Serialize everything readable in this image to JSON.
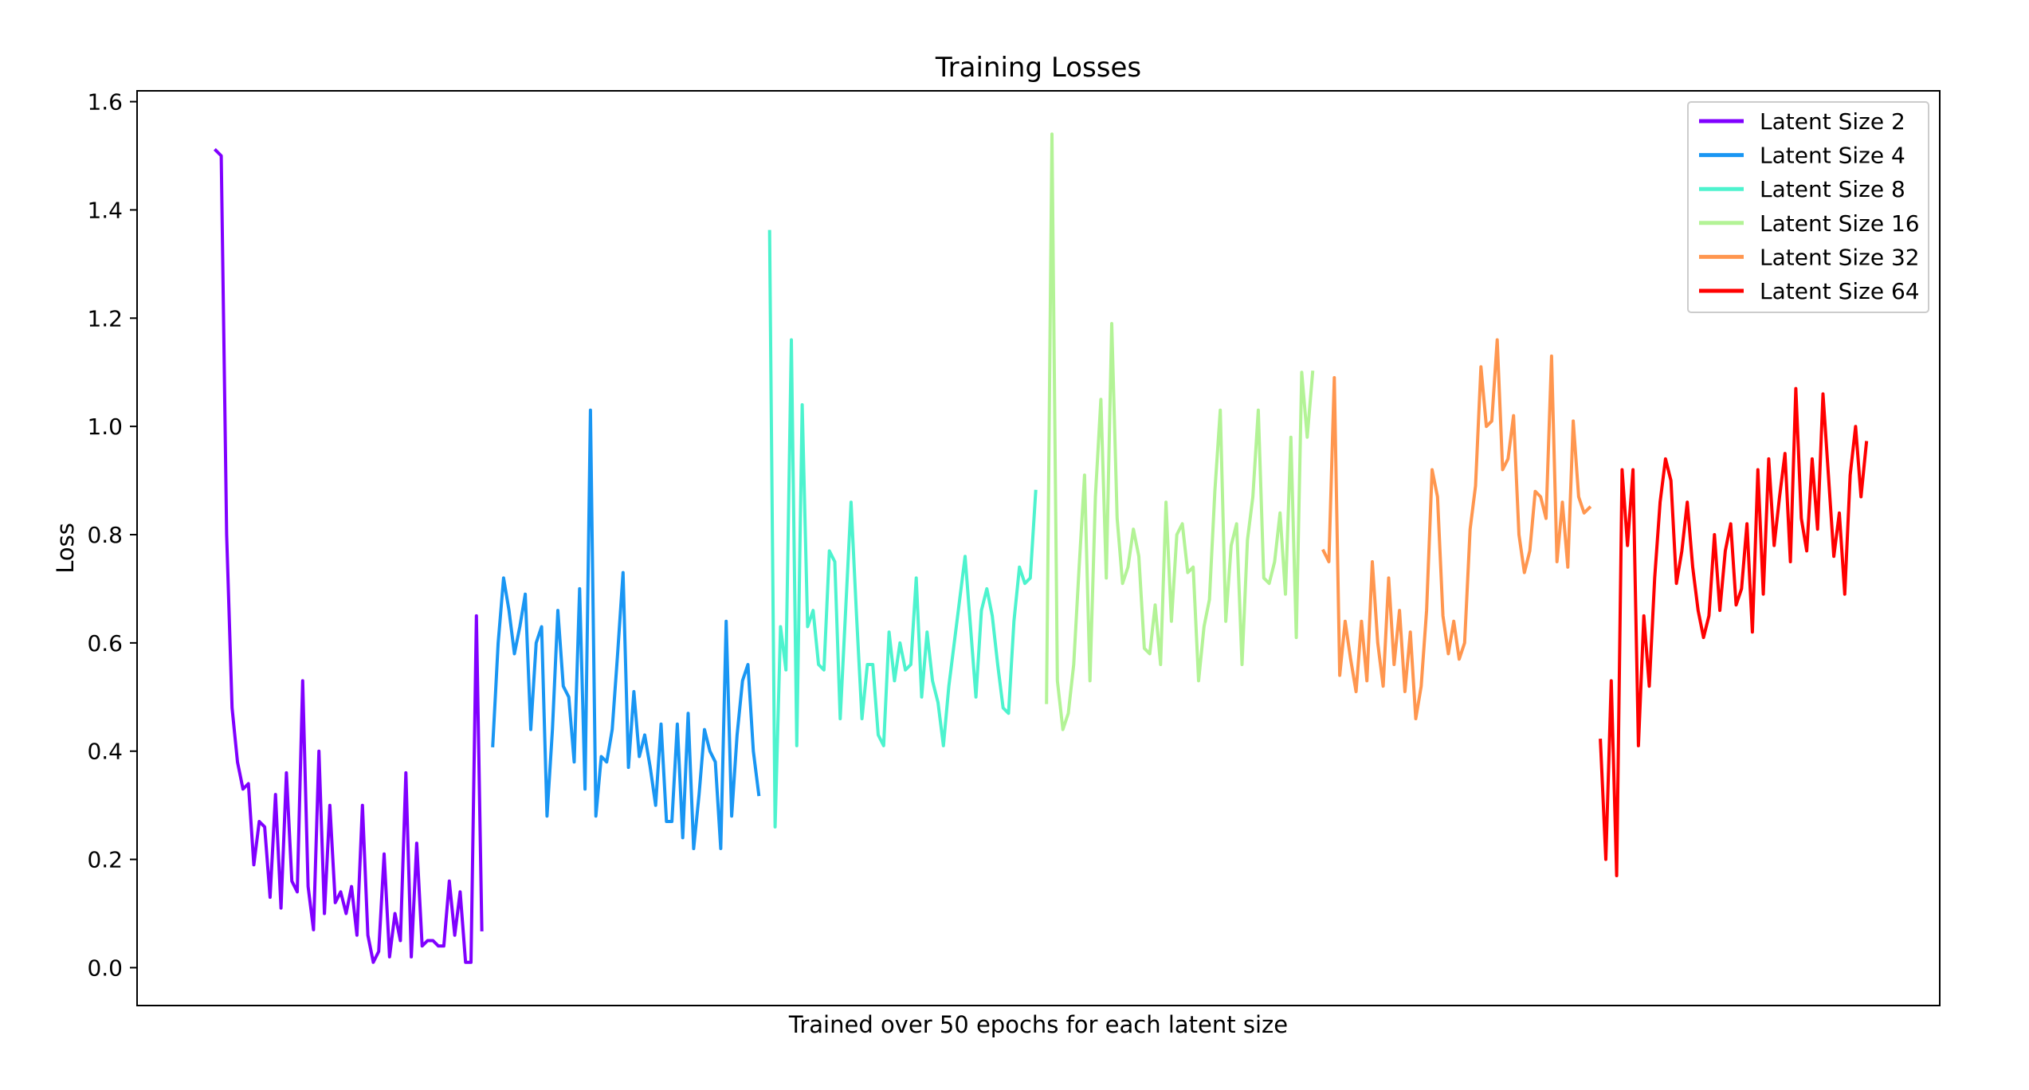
{
  "chart_data": {
    "type": "line",
    "title": "Training Losses",
    "xlabel": "Trained over 50 epochs for each latent size",
    "ylabel": "Loss",
    "ylim": [
      -0.07,
      1.62
    ],
    "yticks": [
      "0.0",
      "0.2",
      "0.4",
      "0.6",
      "0.8",
      "1.0",
      "1.2",
      "1.4",
      "1.6"
    ],
    "ytick_values": [
      0.0,
      0.2,
      0.4,
      0.6,
      0.8,
      1.0,
      1.2,
      1.4,
      1.6
    ],
    "xlim": [
      -0.5,
      331.5
    ],
    "xticks": [],
    "grid": false,
    "legend_position": "top-right",
    "series": [
      {
        "name": "Latent Size 2",
        "color": "#8000ff",
        "x_start": 14,
        "values": [
          1.51,
          1.5,
          0.8,
          0.48,
          0.38,
          0.33,
          0.34,
          0.19,
          0.27,
          0.26,
          0.13,
          0.32,
          0.11,
          0.36,
          0.16,
          0.14,
          0.53,
          0.15,
          0.07,
          0.4,
          0.1,
          0.3,
          0.12,
          0.14,
          0.1,
          0.15,
          0.06,
          0.3,
          0.06,
          0.01,
          0.03,
          0.21,
          0.02,
          0.1,
          0.05,
          0.36,
          0.02,
          0.23,
          0.04,
          0.05,
          0.05,
          0.04,
          0.04,
          0.16,
          0.06,
          0.14,
          0.01,
          0.01,
          0.65,
          0.07
        ]
      },
      {
        "name": "Latent Size 4",
        "color": "#1996f3",
        "x_start": 65,
        "values": [
          0.41,
          0.6,
          0.72,
          0.66,
          0.58,
          0.63,
          0.69,
          0.44,
          0.6,
          0.63,
          0.28,
          0.44,
          0.66,
          0.52,
          0.5,
          0.38,
          0.7,
          0.33,
          1.03,
          0.28,
          0.39,
          0.38,
          0.44,
          0.58,
          0.73,
          0.37,
          0.51,
          0.39,
          0.43,
          0.37,
          0.3,
          0.45,
          0.27,
          0.27,
          0.45,
          0.24,
          0.47,
          0.22,
          0.32,
          0.44,
          0.4,
          0.38,
          0.22,
          0.64,
          0.28,
          0.43,
          0.53,
          0.56,
          0.4,
          0.32
        ]
      },
      {
        "name": "Latent Size 8",
        "color": "#4df3ce",
        "x_start": 116,
        "values": [
          1.36,
          0.26,
          0.63,
          0.55,
          1.16,
          0.41,
          1.04,
          0.63,
          0.66,
          0.56,
          0.55,
          0.77,
          0.75,
          0.46,
          0.66,
          0.86,
          0.65,
          0.46,
          0.56,
          0.56,
          0.43,
          0.41,
          0.62,
          0.53,
          0.6,
          0.55,
          0.56,
          0.72,
          0.5,
          0.62,
          0.53,
          0.49,
          0.41,
          0.52,
          0.6,
          0.68,
          0.76,
          0.63,
          0.5,
          0.66,
          0.7,
          0.65,
          0.56,
          0.48,
          0.47,
          0.64,
          0.74,
          0.71,
          0.72,
          0.88
        ]
      },
      {
        "name": "Latent Size 16",
        "color": "#b3f396",
        "x_start": 167,
        "values": [
          0.49,
          1.54,
          0.53,
          0.44,
          0.47,
          0.56,
          0.74,
          0.91,
          0.53,
          0.87,
          1.05,
          0.72,
          1.19,
          0.83,
          0.71,
          0.74,
          0.81,
          0.76,
          0.59,
          0.58,
          0.67,
          0.56,
          0.86,
          0.64,
          0.8,
          0.82,
          0.73,
          0.74,
          0.53,
          0.63,
          0.68,
          0.88,
          1.03,
          0.64,
          0.78,
          0.82,
          0.56,
          0.79,
          0.87,
          1.03,
          0.72,
          0.71,
          0.75,
          0.84,
          0.69,
          0.98,
          0.61,
          1.1,
          0.98,
          1.1
        ]
      },
      {
        "name": "Latent Size 32",
        "color": "#ff964f",
        "x_start": 218,
        "values": [
          0.77,
          0.75,
          1.09,
          0.54,
          0.64,
          0.57,
          0.51,
          0.64,
          0.53,
          0.75,
          0.6,
          0.52,
          0.72,
          0.56,
          0.66,
          0.51,
          0.62,
          0.46,
          0.52,
          0.66,
          0.92,
          0.87,
          0.65,
          0.58,
          0.64,
          0.57,
          0.6,
          0.81,
          0.89,
          1.11,
          1.0,
          1.01,
          1.16,
          0.92,
          0.94,
          1.02,
          0.8,
          0.73,
          0.77,
          0.88,
          0.87,
          0.83,
          1.13,
          0.75,
          0.86,
          0.74,
          1.01,
          0.87,
          0.84,
          0.85
        ]
      },
      {
        "name": "Latent Size 64",
        "color": "#ff0000",
        "x_start": 269,
        "values": [
          0.42,
          0.2,
          0.53,
          0.17,
          0.92,
          0.78,
          0.92,
          0.41,
          0.65,
          0.52,
          0.72,
          0.86,
          0.94,
          0.9,
          0.71,
          0.77,
          0.86,
          0.74,
          0.66,
          0.61,
          0.65,
          0.8,
          0.66,
          0.77,
          0.82,
          0.67,
          0.7,
          0.82,
          0.62,
          0.92,
          0.69,
          0.94,
          0.78,
          0.87,
          0.95,
          0.75,
          1.07,
          0.83,
          0.77,
          0.94,
          0.81,
          1.06,
          0.91,
          0.76,
          0.84,
          0.69,
          0.91,
          1.0,
          0.87,
          0.97
        ]
      }
    ]
  }
}
